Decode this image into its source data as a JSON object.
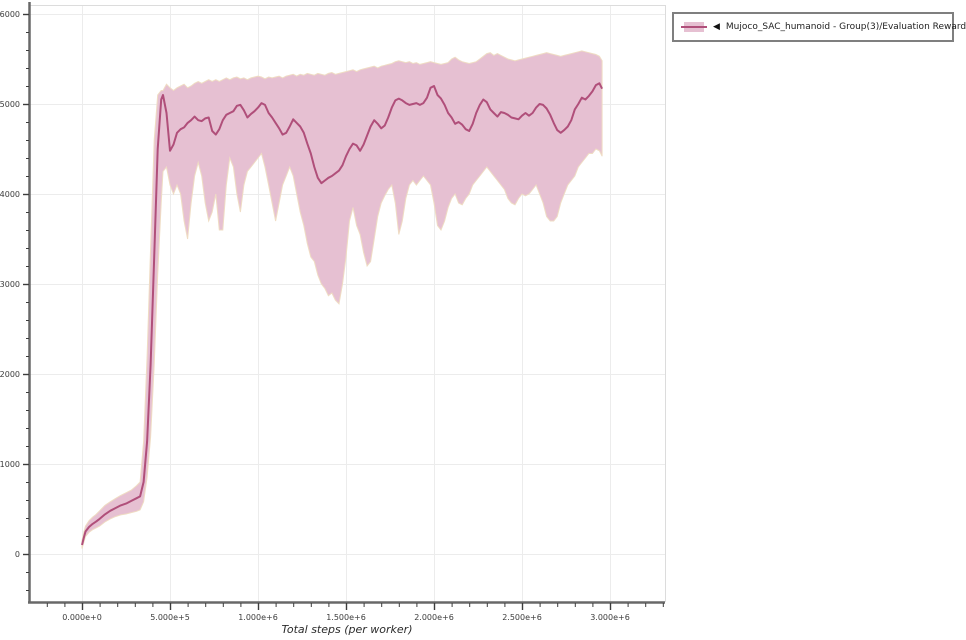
{
  "page": {
    "background": "#ffffff"
  },
  "legend": {
    "collapse_icon": "◀",
    "label": "Mujoco_SAC_humanoid - Group(3)/Evaluation Reward"
  },
  "chart_data": {
    "type": "line",
    "title": "",
    "xlabel": "Total steps (per worker)",
    "ylabel": "",
    "legend_position": "top-right-outside",
    "grid": "major",
    "xlim_steps": [
      -300000,
      3300000
    ],
    "ylim": [
      -530,
      6090
    ],
    "x_major_ticks": [
      0,
      500000,
      1000000,
      1500000,
      2000000,
      2500000,
      3000000
    ],
    "x_major_tick_labels": [
      "0.000e+0",
      "5.000e+5",
      "1.000e+6",
      "1.500e+6",
      "2.000e+6",
      "2.500e+6",
      "3.000e+6"
    ],
    "x_minor_tick_interval": 100000,
    "y_major_ticks": [
      0,
      1000,
      2000,
      3000,
      4000,
      5000,
      6000
    ],
    "y_major_tick_labels": [
      "0",
      "1000",
      "2000",
      "3000",
      "4000",
      "5000",
      "6000"
    ],
    "y_minor_tick_interval": 200,
    "colors": {
      "grid": "#ececec",
      "spine_dark": "#686868",
      "spine_light": "#dcdcdc",
      "tick": "#3c3c3c",
      "tick_label": "#3c3c3c",
      "axis_title": "#2b2b2b",
      "legend_border": "#7f7f7f",
      "background": "#ffffff"
    },
    "series": [
      {
        "name": "Mujoco_SAC_humanoid - Group(3)/Evaluation Reward",
        "line_color": "#b04f7a",
        "band_color": "#e6c0d2",
        "band_edge_color": "#efdcc3",
        "x_unit_steps": 1000000,
        "x": [
          0.0,
          0.01,
          0.02,
          0.04,
          0.06,
          0.08,
          0.1,
          0.13,
          0.16,
          0.19,
          0.22,
          0.25,
          0.28,
          0.31,
          0.33,
          0.35,
          0.37,
          0.39,
          0.41,
          0.43,
          0.45,
          0.46,
          0.48,
          0.5,
          0.52,
          0.54,
          0.56,
          0.58,
          0.6,
          0.62,
          0.64,
          0.66,
          0.68,
          0.7,
          0.72,
          0.74,
          0.76,
          0.78,
          0.8,
          0.82,
          0.84,
          0.86,
          0.88,
          0.9,
          0.92,
          0.94,
          0.96,
          0.98,
          1.0,
          1.02,
          1.04,
          1.06,
          1.08,
          1.1,
          1.12,
          1.14,
          1.16,
          1.18,
          1.2,
          1.22,
          1.24,
          1.26,
          1.28,
          1.3,
          1.32,
          1.34,
          1.36,
          1.38,
          1.4,
          1.42,
          1.44,
          1.46,
          1.48,
          1.5,
          1.52,
          1.54,
          1.56,
          1.58,
          1.6,
          1.62,
          1.64,
          1.66,
          1.68,
          1.7,
          1.72,
          1.74,
          1.76,
          1.78,
          1.8,
          1.82,
          1.84,
          1.86,
          1.88,
          1.9,
          1.92,
          1.94,
          1.96,
          1.98,
          2.0,
          2.02,
          2.04,
          2.06,
          2.08,
          2.1,
          2.12,
          2.14,
          2.16,
          2.18,
          2.2,
          2.22,
          2.24,
          2.26,
          2.28,
          2.3,
          2.32,
          2.34,
          2.36,
          2.38,
          2.4,
          2.42,
          2.44,
          2.46,
          2.48,
          2.5,
          2.52,
          2.54,
          2.56,
          2.58,
          2.6,
          2.62,
          2.64,
          2.66,
          2.68,
          2.7,
          2.72,
          2.74,
          2.76,
          2.78,
          2.8,
          2.82,
          2.84,
          2.86,
          2.88,
          2.9,
          2.92,
          2.94,
          2.955
        ],
        "mean": [
          100,
          180,
          250,
          300,
          335,
          360,
          390,
          440,
          480,
          510,
          540,
          560,
          590,
          620,
          640,
          800,
          1250,
          2100,
          3300,
          4500,
          5050,
          5100,
          4900,
          4480,
          4550,
          4680,
          4720,
          4740,
          4790,
          4820,
          4860,
          4820,
          4810,
          4840,
          4850,
          4700,
          4660,
          4720,
          4820,
          4880,
          4900,
          4920,
          4980,
          4990,
          4930,
          4850,
          4890,
          4920,
          4960,
          5010,
          4990,
          4900,
          4850,
          4790,
          4730,
          4660,
          4680,
          4750,
          4830,
          4790,
          4750,
          4680,
          4560,
          4450,
          4300,
          4180,
          4120,
          4150,
          4180,
          4200,
          4230,
          4260,
          4320,
          4420,
          4500,
          4560,
          4540,
          4480,
          4550,
          4650,
          4750,
          4820,
          4780,
          4730,
          4760,
          4850,
          4960,
          5040,
          5060,
          5040,
          5010,
          4990,
          5000,
          5010,
          4990,
          5010,
          5070,
          5180,
          5200,
          5100,
          5060,
          4990,
          4900,
          4850,
          4780,
          4800,
          4770,
          4720,
          4700,
          4780,
          4900,
          4990,
          5050,
          5020,
          4940,
          4900,
          4860,
          4910,
          4900,
          4880,
          4850,
          4840,
          4830,
          4870,
          4900,
          4870,
          4900,
          4960,
          5000,
          4990,
          4950,
          4880,
          4790,
          4710,
          4680,
          4710,
          4750,
          4820,
          4940,
          5000,
          5070,
          5050,
          5090,
          5140,
          5210,
          5230,
          5170
        ],
        "lo": [
          60,
          130,
          195,
          240,
          270,
          290,
          310,
          355,
          390,
          415,
          435,
          445,
          460,
          475,
          490,
          580,
          850,
          1300,
          2100,
          3100,
          3900,
          4250,
          4300,
          4100,
          4000,
          4100,
          4000,
          3700,
          3500,
          3900,
          4200,
          4350,
          4200,
          3900,
          3700,
          3800,
          4000,
          3600,
          3600,
          4100,
          4400,
          4300,
          4000,
          3800,
          4100,
          4250,
          4300,
          4350,
          4400,
          4450,
          4300,
          4100,
          3900,
          3700,
          3900,
          4100,
          4200,
          4300,
          4200,
          4000,
          3800,
          3650,
          3450,
          3300,
          3250,
          3100,
          3000,
          2950,
          2870,
          2900,
          2820,
          2780,
          3000,
          3300,
          3700,
          3850,
          3650,
          3550,
          3350,
          3200,
          3250,
          3500,
          3750,
          3900,
          3980,
          4050,
          4100,
          3900,
          3550,
          3700,
          3950,
          4100,
          4150,
          4100,
          4150,
          4200,
          4150,
          4100,
          3900,
          3650,
          3600,
          3700,
          3850,
          3950,
          4000,
          3900,
          3880,
          3950,
          4000,
          4100,
          4150,
          4200,
          4250,
          4300,
          4250,
          4200,
          4150,
          4100,
          4050,
          3950,
          3900,
          3880,
          3950,
          4000,
          3980,
          4000,
          4050,
          4100,
          4000,
          3900,
          3750,
          3700,
          3700,
          3750,
          3900,
          4000,
          4100,
          4150,
          4200,
          4300,
          4350,
          4400,
          4450,
          4450,
          4500,
          4480,
          4420
        ],
        "hi": [
          150,
          240,
          310,
          370,
          410,
          440,
          480,
          540,
          580,
          615,
          650,
          680,
          710,
          760,
          800,
          1250,
          2200,
          3400,
          4600,
          5100,
          5150,
          5150,
          5220,
          5180,
          5150,
          5180,
          5200,
          5220,
          5180,
          5200,
          5230,
          5250,
          5230,
          5250,
          5270,
          5250,
          5270,
          5250,
          5270,
          5290,
          5270,
          5290,
          5300,
          5280,
          5290,
          5270,
          5290,
          5300,
          5310,
          5300,
          5280,
          5300,
          5290,
          5300,
          5310,
          5290,
          5310,
          5320,
          5330,
          5310,
          5330,
          5320,
          5340,
          5330,
          5320,
          5340,
          5330,
          5320,
          5340,
          5350,
          5330,
          5340,
          5350,
          5360,
          5370,
          5380,
          5360,
          5380,
          5390,
          5400,
          5410,
          5420,
          5400,
          5420,
          5430,
          5440,
          5450,
          5470,
          5480,
          5470,
          5460,
          5470,
          5450,
          5460,
          5440,
          5450,
          5460,
          5470,
          5460,
          5450,
          5440,
          5450,
          5460,
          5500,
          5520,
          5490,
          5470,
          5460,
          5450,
          5460,
          5470,
          5500,
          5530,
          5560,
          5570,
          5540,
          5560,
          5540,
          5520,
          5500,
          5490,
          5480,
          5490,
          5500,
          5510,
          5520,
          5530,
          5540,
          5550,
          5560,
          5570,
          5560,
          5550,
          5540,
          5530,
          5540,
          5550,
          5560,
          5570,
          5580,
          5590,
          5580,
          5570,
          5560,
          5550,
          5530,
          5480
        ]
      }
    ]
  }
}
